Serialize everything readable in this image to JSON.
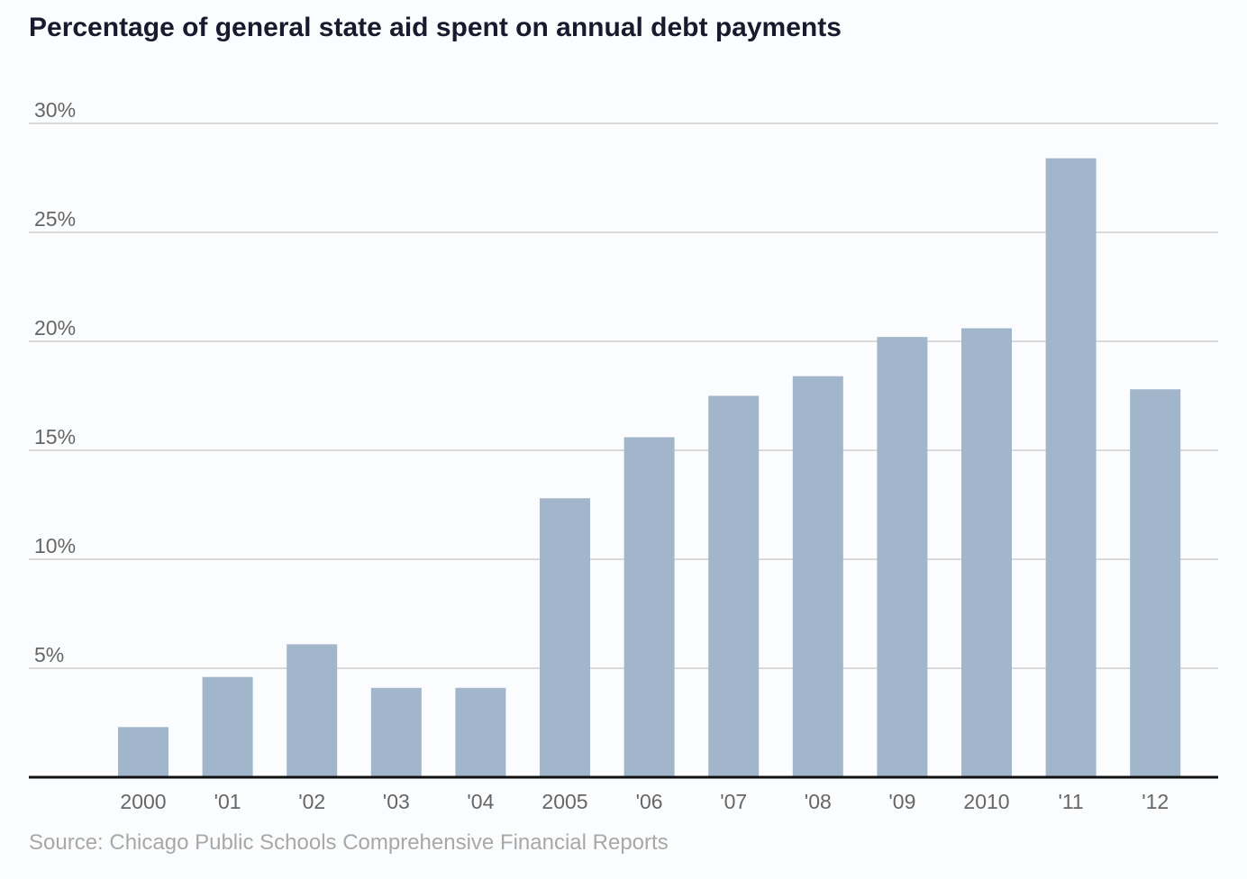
{
  "chart_data": {
    "type": "bar",
    "title": "Percentage of general state aid spent on annual debt payments",
    "categories": [
      "2000",
      "'01",
      "'02",
      "'03",
      "'04",
      "2005",
      "'06",
      "'07",
      "'08",
      "'09",
      "2010",
      "'11",
      "'12"
    ],
    "values": [
      2.3,
      4.6,
      6.1,
      4.1,
      4.1,
      12.8,
      15.6,
      17.5,
      18.4,
      20.2,
      20.6,
      28.4,
      17.8
    ],
    "y_tick_values": [
      5,
      10,
      15,
      20,
      25,
      30
    ],
    "y_tick_labels": [
      "5%",
      "10%",
      "15%",
      "20%",
      "25%",
      "30%"
    ],
    "ylim": [
      0,
      30
    ],
    "xlabel": "",
    "ylabel": "",
    "grid": true,
    "legend": "none",
    "colors": {
      "bar": "#a2b6cb",
      "grid": "#cfcfcf",
      "baseline": "#111111"
    }
  },
  "footer": {
    "source": "Source: Chicago Public Schools Comprehensive Financial Reports"
  }
}
